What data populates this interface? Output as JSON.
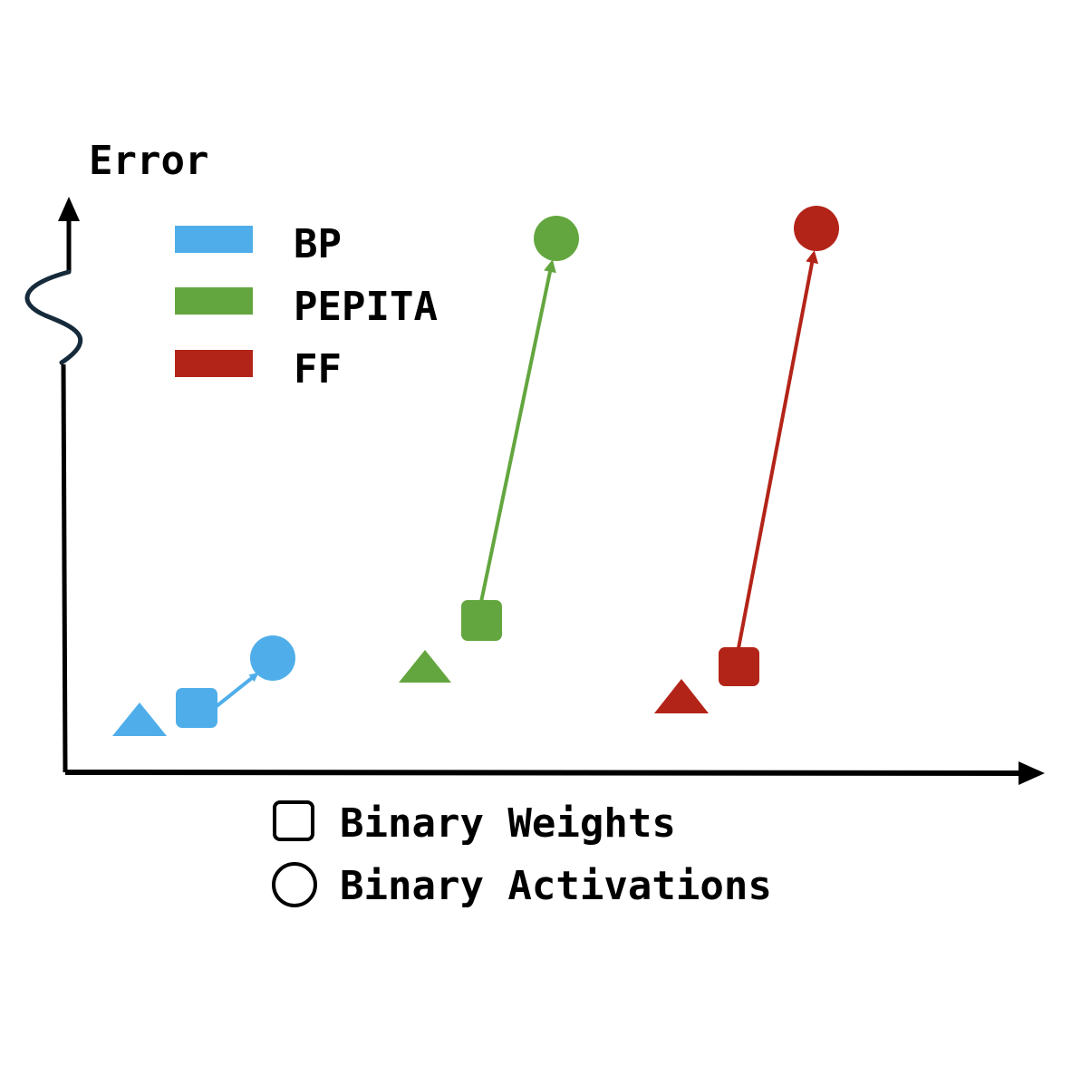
{
  "axes": {
    "y_label": "Error",
    "x_label": ""
  },
  "legend": {
    "methods": [
      {
        "label": "BP",
        "color": "#4faeea"
      },
      {
        "label": "PEPITA",
        "color": "#63a63f"
      },
      {
        "label": "FF",
        "color": "#b32418"
      }
    ],
    "markers": [
      {
        "shape": "square",
        "label": "Binary Weights"
      },
      {
        "shape": "circle",
        "label": "Binary Activations"
      }
    ]
  },
  "methods_points": [
    {
      "method": "BP",
      "color": "#4faeea",
      "baseline": "triangle",
      "binary_weights": "square",
      "binary_activations": "circle",
      "arrow": "binary_weights -> binary_activations"
    },
    {
      "method": "PEPITA",
      "color": "#63a63f",
      "baseline": "triangle",
      "binary_weights": "square",
      "binary_activations": "circle",
      "arrow": "binary_weights -> binary_activations"
    },
    {
      "method": "FF",
      "color": "#b32418",
      "baseline": "triangle",
      "binary_weights": "square",
      "binary_activations": "circle",
      "arrow": "binary_weights -> binary_activations"
    }
  ]
}
